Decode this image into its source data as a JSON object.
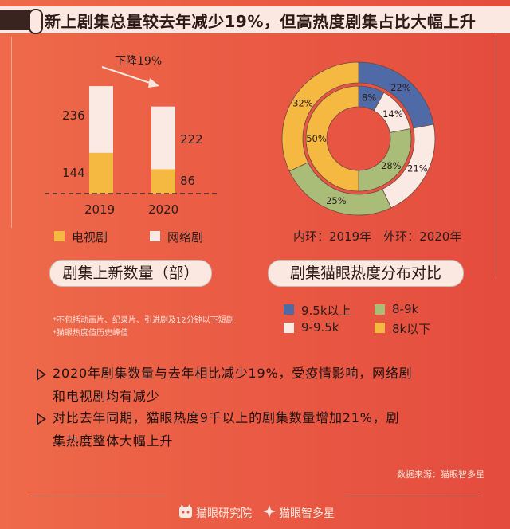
{
  "title": "新上剧集总量较去年减少19%，但高热度剧集占比大幅上升",
  "bar_chart": {
    "arrow_label": "下降19%",
    "caption": "剧集上新数量（部）",
    "legend": [
      {
        "label": "电视剧",
        "color": "#f5b942"
      },
      {
        "label": "网络剧",
        "color": "#fbeae4"
      }
    ],
    "bars": [
      {
        "year": "2019",
        "tv": 144,
        "web": 236,
        "tv_label": "144",
        "web_label": "236"
      },
      {
        "year": "2020",
        "tv": 86,
        "web": 222,
        "tv_label": "86",
        "web_label": "222"
      }
    ]
  },
  "donut_chart": {
    "caption": "剧集猫眼热度分布对比",
    "ring_note": "内环：2019年　外环：2020年",
    "outer_ring_2020": [
      {
        "cat": "9.5k以上",
        "value": 22,
        "label": "22%",
        "color": "#4f6aa6"
      },
      {
        "cat": "9-9.5k",
        "value": 21,
        "label": "21%",
        "color": "#fbeae4"
      },
      {
        "cat": "8-9k",
        "value": 25,
        "label": "25%",
        "color": "#a9bd78"
      },
      {
        "cat": "8k以下",
        "value": 32,
        "label": "32%",
        "color": "#f5b942"
      }
    ],
    "inner_ring_2019": [
      {
        "cat": "9.5k以上",
        "value": 8,
        "label": "8%",
        "color": "#4f6aa6"
      },
      {
        "cat": "9-9.5k",
        "value": 14,
        "label": "14%",
        "color": "#fbeae4"
      },
      {
        "cat": "8-9k",
        "value": 28,
        "label": "28%",
        "color": "#a9bd78"
      },
      {
        "cat": "8k以下",
        "value": 50,
        "label": "50%",
        "color": "#f5b942"
      }
    ],
    "legend": [
      {
        "label": "9.5k以上",
        "color": "#4f6aa6"
      },
      {
        "label": "8-9k",
        "color": "#a9bd78"
      },
      {
        "label": "9-9.5k",
        "color": "#fbeae4"
      },
      {
        "label": "8k以下",
        "color": "#f5b942"
      }
    ]
  },
  "notes": [
    "*不包括动画片、纪录片、引进剧及12分钟以下短剧",
    "*猫眼热度值历史峰值"
  ],
  "bullets": [
    {
      "line1": "2020年剧集数量与去年相比减少19%，受疫情影响，网络剧",
      "line2": "和电视剧均有减少"
    },
    {
      "line1": "对比去年同期，猫眼热度9千以上的剧集数量增加21%，剧",
      "line2": "集热度整体大幅上升"
    }
  ],
  "source": "数据来源：猫眼智多星",
  "footer": {
    "brand1": "猫眼研究院",
    "brand2": "猫眼智多星"
  }
}
